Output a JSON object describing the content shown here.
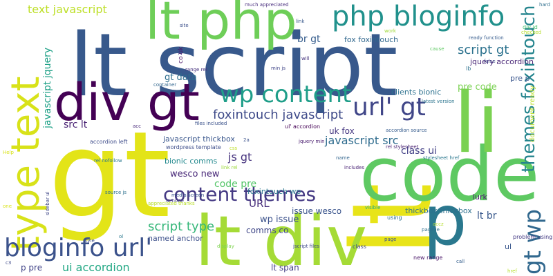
{
  "words": [
    {
      "text": "gt",
      "color": "#e3e418"
    },
    {
      "text": "lt",
      "color": "#e8e419"
    },
    {
      "text": "lt script",
      "color": "#38598c"
    },
    {
      "text": "code",
      "color": "#5ec962"
    },
    {
      "text": "li",
      "color": "#7ad151"
    },
    {
      "text": "lt div",
      "color": "#a5db36"
    },
    {
      "text": "p",
      "color": "#2a788e"
    },
    {
      "text": "div gt",
      "color": "#440154"
    },
    {
      "text": "lt php",
      "color": "#6ece58"
    },
    {
      "text": "type text",
      "color": "#d8e219"
    },
    {
      "text": "php bloginfo",
      "color": "#21918c"
    },
    {
      "text": "bloginfo url'",
      "color": "#3b528b"
    },
    {
      "text": "wp content",
      "color": "#1f9e89"
    },
    {
      "text": "url' gt",
      "color": "#404688"
    },
    {
      "text": "gt wp",
      "color": "#31688e"
    },
    {
      "text": "themes foxintouch",
      "color": "#25858e"
    },
    {
      "text": "content themes",
      "color": "#443983"
    },
    {
      "text": "text javascript",
      "color": "#bddf26"
    },
    {
      "text": "foxintouch javascript",
      "color": "#3e4a89"
    },
    {
      "text": "script gt",
      "color": "#2c728e"
    },
    {
      "text": "javascript src",
      "color": "#2f6c8e"
    },
    {
      "text": "script type",
      "color": "#35b779"
    },
    {
      "text": "ui accordion",
      "color": "#22a884"
    },
    {
      "text": "javascript jquery",
      "color": "#1fa187"
    },
    {
      "text": "js gt",
      "color": "#46337e"
    },
    {
      "text": "code pre",
      "color": "#54c568"
    },
    {
      "text": "src lt",
      "color": "#482173"
    },
    {
      "text": "br gt",
      "color": "#365d8d"
    },
    {
      "text": "gt data",
      "color": "#2e6e8e"
    },
    {
      "text": "fox foxintouch",
      "color": "#30678d"
    },
    {
      "text": "jquery accordion",
      "color": "#482576"
    },
    {
      "text": "pre code",
      "color": "#7ad151"
    },
    {
      "text": "clients bionic",
      "color": "#2c718e"
    },
    {
      "text": "class ui",
      "color": "#424086"
    },
    {
      "text": "uk fox",
      "color": "#453781"
    },
    {
      "text": "lt br",
      "color": "#38588c"
    },
    {
      "text": "wp issue",
      "color": "#3b518b"
    },
    {
      "text": "URL",
      "color": "#472d7b"
    },
    {
      "text": "comms co",
      "color": "#3f4788"
    },
    {
      "text": "wesco new",
      "color": "#482878"
    },
    {
      "text": "issue wesco",
      "color": "#3a548c"
    },
    {
      "text": "thickbox thickbox",
      "color": "#2d708e"
    },
    {
      "text": "javascript thickbox",
      "color": "#39568c"
    },
    {
      "text": "bionic comms",
      "color": "#23898e"
    },
    {
      "text": "named anchor",
      "color": "#3c4f8a"
    },
    {
      "text": "lt span",
      "color": "#433e85"
    },
    {
      "text": "p pre",
      "color": "#404387"
    },
    {
      "text": "foxintouch wp",
      "color": "#2a768e"
    },
    {
      "text": "document ready",
      "color": "#bade28"
    },
    {
      "text": "lurk",
      "color": "#481b6d"
    },
    {
      "text": "ul' accordion",
      "color": "#440154"
    },
    {
      "text": "accordion left",
      "color": "#3e4c8a"
    },
    {
      "text": "co uk",
      "color": "#471063"
    },
    {
      "text": "pre p",
      "color": "#39558c"
    },
    {
      "text": "wordpress template",
      "color": "#3d4d8a"
    },
    {
      "text": "rel stylesheet",
      "color": "#481f70"
    },
    {
      "text": "stylesheet href",
      "color": "#2a778e"
    },
    {
      "text": "much appreciated",
      "color": "#4a2f7f"
    },
    {
      "text": "ready function",
      "color": "#365c8d"
    },
    {
      "text": "latest version",
      "color": "#2b748e"
    },
    {
      "text": "clients bionic",
      "color": "#2c718e"
    },
    {
      "text": "new range",
      "color": "#481467"
    },
    {
      "text": "problem using",
      "color": "#443a83"
    },
    {
      "text": "right",
      "color": "#39568c"
    },
    {
      "text": "range rel",
      "color": "#46327e"
    },
    {
      "text": "min js",
      "color": "#404588"
    },
    {
      "text": "jquery min",
      "color": "#481c6e"
    },
    {
      "text": "files included",
      "color": "#3b528b"
    },
    {
      "text": "source js",
      "color": "#2d718e"
    },
    {
      "text": "container",
      "color": "#31668e"
    },
    {
      "text": "accordion source",
      "color": "#365c8d"
    },
    {
      "text": "media screen",
      "color": "#3a538b"
    },
    {
      "text": "jscript files",
      "color": "#3e4989"
    },
    {
      "text": "page ie",
      "color": "#2e6f8e"
    },
    {
      "text": "ie none",
      "color": "#433d84"
    },
    {
      "text": "visible",
      "color": "#28ae80"
    },
    {
      "text": "includes",
      "color": "#482173"
    },
    {
      "text": "name",
      "color": "#32658e"
    },
    {
      "text": "class",
      "color": "#414487"
    },
    {
      "text": "display",
      "color": "#7fd34e"
    },
    {
      "text": "rel nofollow",
      "color": "#2a788e"
    },
    {
      "text": "appreciated thanks",
      "color": "#b8de29"
    },
    {
      "text": "div id",
      "color": "#46c06f"
    },
    {
      "text": "checked",
      "color": "#b5de2b"
    },
    {
      "text": "work",
      "color": "#a0da39"
    },
    {
      "text": "site",
      "color": "#3c508b"
    },
    {
      "text": "link rel",
      "color": "#9dd93b"
    },
    {
      "text": "ul",
      "color": "#39568c"
    },
    {
      "text": "using",
      "color": "#2d708e"
    },
    {
      "text": "acc",
      "color": "#482979"
    },
    {
      "text": "false",
      "color": "#3f4889"
    },
    {
      "text": "will",
      "color": "#45337d"
    },
    {
      "text": "css",
      "color": "#bddf26"
    },
    {
      "text": "2a",
      "color": "#3b528b"
    },
    {
      "text": "lb",
      "color": "#2d718e"
    },
    {
      "text": "href",
      "color": "#b5de2b"
    },
    {
      "text": "call",
      "color": "#355f8d"
    },
    {
      "text": "page",
      "color": "#3b528b"
    },
    {
      "text": "link",
      "color": "#38598c"
    },
    {
      "text": "cause",
      "color": "#5ec962"
    },
    {
      "text": "sidebar ul",
      "color": "#3f4788"
    },
    {
      "text": "accz",
      "color": "#b5de2b"
    },
    {
      "text": "Help",
      "color": "#d8e219"
    },
    {
      "text": "one",
      "color": "#d8e219"
    },
    {
      "text": "c3",
      "color": "#3e4989"
    },
    {
      "text": "2b",
      "color": "#443983"
    },
    {
      "text": "ol",
      "color": "#2a788e"
    },
    {
      "text": "hard",
      "color": "#2e6e8e"
    },
    {
      "text": "style",
      "color": "#3e4c8a"
    }
  ]
}
